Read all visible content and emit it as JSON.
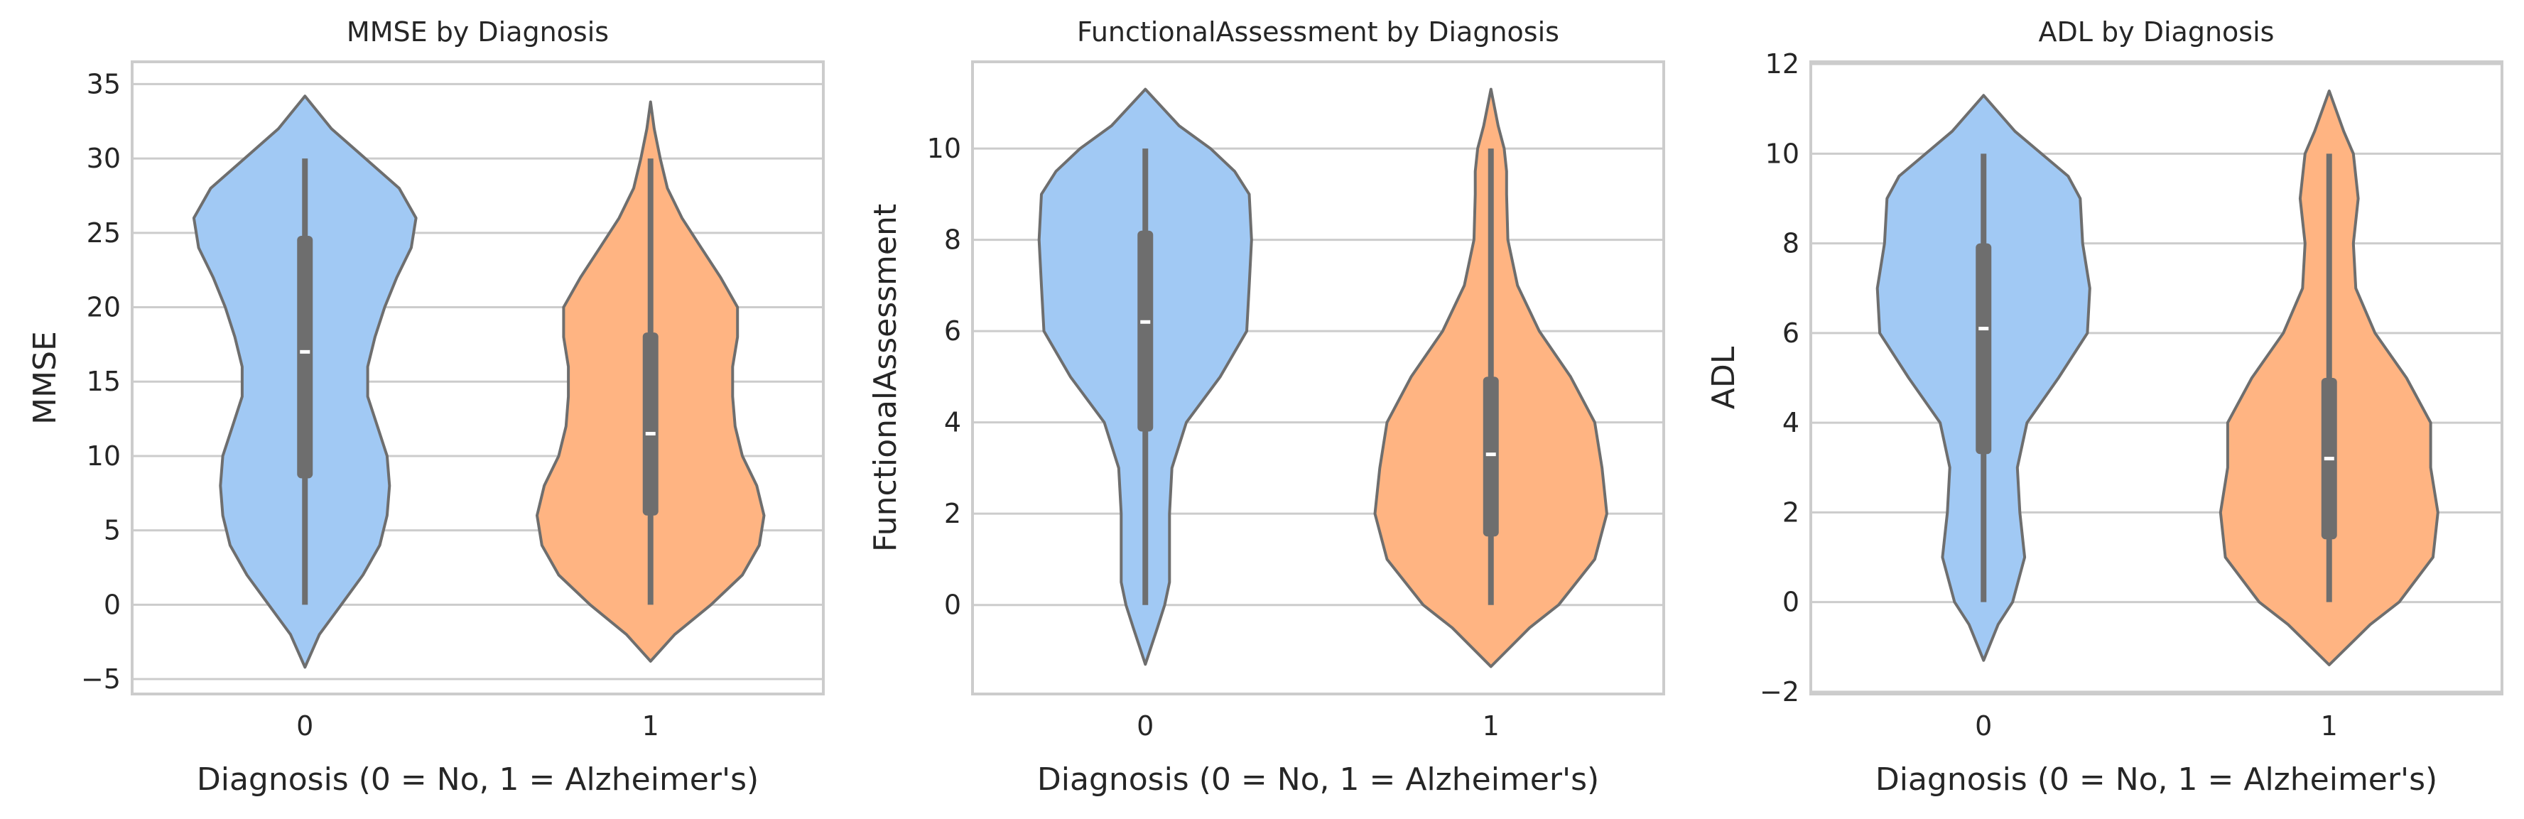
{
  "colors": {
    "group0": "#a1c9f4",
    "group1": "#ffb482",
    "outline": "#6e6e6e",
    "box": "#6e6e6e",
    "median": "#ffffff",
    "grid": "#cccccc"
  },
  "chart_data": [
    {
      "type": "violin",
      "title": "MMSE by Diagnosis",
      "xlabel": "Diagnosis (0 = No, 1 = Alzheimer's)",
      "ylabel": "MMSE",
      "categories": [
        "0",
        "1"
      ],
      "ylim": [
        -6,
        36.5
      ],
      "yticks": [
        -5,
        0,
        5,
        10,
        15,
        20,
        25,
        30,
        35
      ],
      "grid": true,
      "series": [
        {
          "category": "0",
          "min": 0,
          "q1": 8.5,
          "median": 17,
          "q3": 24.8,
          "max": 30,
          "kde_min": -4.2,
          "kde_max": 34.2,
          "density": [
            [
              -4.2,
              0
            ],
            [
              -2,
              0.12
            ],
            [
              0,
              0.3
            ],
            [
              2,
              0.48
            ],
            [
              4,
              0.62
            ],
            [
              6,
              0.68
            ],
            [
              8,
              0.7
            ],
            [
              10,
              0.68
            ],
            [
              12,
              0.6
            ],
            [
              14,
              0.52
            ],
            [
              16,
              0.52
            ],
            [
              18,
              0.58
            ],
            [
              20,
              0.66
            ],
            [
              22,
              0.76
            ],
            [
              24,
              0.88
            ],
            [
              26,
              0.92
            ],
            [
              28,
              0.78
            ],
            [
              30,
              0.5
            ],
            [
              32,
              0.22
            ],
            [
              34.2,
              0
            ]
          ]
        },
        {
          "category": "1",
          "min": 0,
          "q1": 6,
          "median": 11.5,
          "q3": 18.3,
          "max": 30,
          "kde_min": -3.8,
          "kde_max": 33.8,
          "density": [
            [
              -3.8,
              0
            ],
            [
              -2,
              0.2
            ],
            [
              0,
              0.5
            ],
            [
              2,
              0.76
            ],
            [
              4,
              0.9
            ],
            [
              6,
              0.94
            ],
            [
              8,
              0.88
            ],
            [
              10,
              0.76
            ],
            [
              12,
              0.7
            ],
            [
              14,
              0.68
            ],
            [
              16,
              0.68
            ],
            [
              18,
              0.72
            ],
            [
              20,
              0.72
            ],
            [
              22,
              0.58
            ],
            [
              24,
              0.42
            ],
            [
              26,
              0.26
            ],
            [
              28,
              0.14
            ],
            [
              30,
              0.08
            ],
            [
              32,
              0.03
            ],
            [
              33.8,
              0
            ]
          ]
        }
      ]
    },
    {
      "type": "violin",
      "title": "FunctionalAssessment by Diagnosis",
      "xlabel": "Diagnosis (0 = No, 1 = Alzheimer's)",
      "ylabel": "FunctionalAssessment",
      "categories": [
        "0",
        "1"
      ],
      "ylim": [
        -1.95,
        11.9
      ],
      "yticks": [
        0,
        2,
        4,
        6,
        8,
        10
      ],
      "grid": true,
      "series": [
        {
          "category": "0",
          "min": 0,
          "q1": 3.8,
          "median": 6.2,
          "q3": 8.2,
          "max": 10,
          "kde_min": -1.3,
          "kde_max": 11.3,
          "density": [
            [
              -1.3,
              0
            ],
            [
              -0.5,
              0.1
            ],
            [
              0,
              0.16
            ],
            [
              0.5,
              0.2
            ],
            [
              1,
              0.2
            ],
            [
              2,
              0.2
            ],
            [
              3,
              0.22
            ],
            [
              4,
              0.34
            ],
            [
              5,
              0.62
            ],
            [
              6,
              0.84
            ],
            [
              7,
              0.86
            ],
            [
              8,
              0.88
            ],
            [
              9,
              0.86
            ],
            [
              9.5,
              0.74
            ],
            [
              10,
              0.54
            ],
            [
              10.5,
              0.28
            ],
            [
              11.3,
              0
            ]
          ]
        },
        {
          "category": "1",
          "min": 0,
          "q1": 1.5,
          "median": 3.3,
          "q3": 5,
          "max": 10,
          "kde_min": -1.35,
          "kde_max": 11.3,
          "density": [
            [
              -1.35,
              0
            ],
            [
              -0.5,
              0.32
            ],
            [
              0,
              0.56
            ],
            [
              1,
              0.86
            ],
            [
              2,
              0.96
            ],
            [
              3,
              0.92
            ],
            [
              4,
              0.86
            ],
            [
              5,
              0.66
            ],
            [
              6,
              0.4
            ],
            [
              7,
              0.22
            ],
            [
              8,
              0.14
            ],
            [
              9,
              0.13
            ],
            [
              9.5,
              0.13
            ],
            [
              10,
              0.11
            ],
            [
              10.5,
              0.06
            ],
            [
              11.3,
              0
            ]
          ]
        }
      ]
    },
    {
      "type": "violin",
      "title": "ADL by Diagnosis",
      "xlabel": "Diagnosis (0 = No, 1 = Alzheimer's)",
      "ylabel": "ADL",
      "categories": [
        "0",
        "1"
      ],
      "ylim": [
        -2.05,
        12.05
      ],
      "yticks": [
        -2,
        0,
        2,
        4,
        6,
        8,
        10,
        12
      ],
      "grid": true,
      "series": [
        {
          "category": "0",
          "min": 0,
          "q1": 3.3,
          "median": 6.1,
          "q3": 8,
          "max": 10,
          "kde_min": -1.3,
          "kde_max": 11.3,
          "density": [
            [
              -1.3,
              0
            ],
            [
              -0.5,
              0.12
            ],
            [
              0,
              0.24
            ],
            [
              1,
              0.34
            ],
            [
              2,
              0.3
            ],
            [
              3,
              0.28
            ],
            [
              4,
              0.36
            ],
            [
              5,
              0.62
            ],
            [
              6,
              0.86
            ],
            [
              7,
              0.88
            ],
            [
              8,
              0.82
            ],
            [
              9,
              0.8
            ],
            [
              9.5,
              0.7
            ],
            [
              10,
              0.48
            ],
            [
              10.5,
              0.26
            ],
            [
              11.3,
              0
            ]
          ]
        },
        {
          "category": "1",
          "min": 0,
          "q1": 1.4,
          "median": 3.2,
          "q3": 5,
          "max": 10,
          "kde_min": -1.4,
          "kde_max": 11.4,
          "density": [
            [
              -1.4,
              0
            ],
            [
              -0.5,
              0.34
            ],
            [
              0,
              0.58
            ],
            [
              1,
              0.86
            ],
            [
              2,
              0.9
            ],
            [
              3,
              0.84
            ],
            [
              4,
              0.84
            ],
            [
              5,
              0.64
            ],
            [
              6,
              0.38
            ],
            [
              7,
              0.22
            ],
            [
              8,
              0.2
            ],
            [
              9,
              0.24
            ],
            [
              10,
              0.2
            ],
            [
              10.5,
              0.12
            ],
            [
              11.4,
              0
            ]
          ]
        }
      ]
    }
  ]
}
